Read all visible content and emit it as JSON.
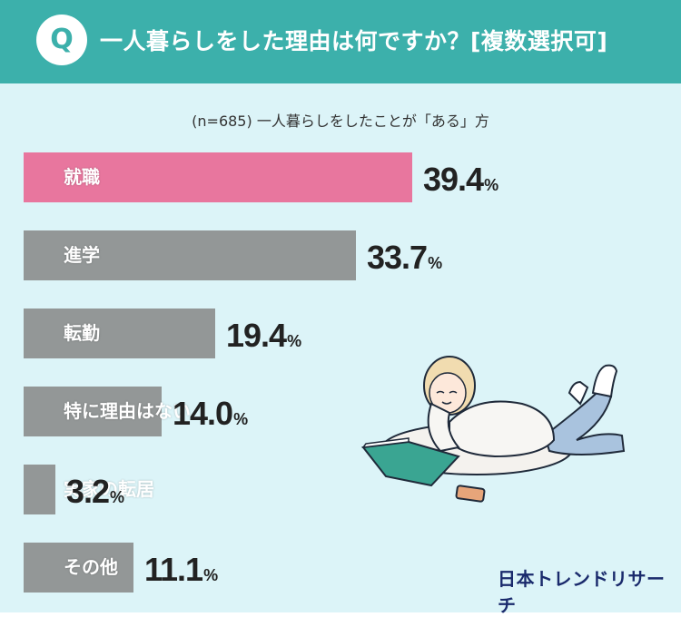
{
  "header": {
    "badge": "Q",
    "title": "一人暮らしをした理由は何ですか？[複数選択可]"
  },
  "sample_note": "(n=685) 一人暮らしをしたことが「ある」方",
  "brand": "日本トレンドリサーチ",
  "colors": {
    "header_bg": "#3cb0ab",
    "page_bg": "#dcf4f8",
    "bar_highlight": "#e8769e",
    "bar_default": "#939797"
  },
  "chart_data": {
    "type": "bar",
    "orientation": "horizontal",
    "categories": [
      "就職",
      "進学",
      "転勤",
      "特に理由はない",
      "実家の転居",
      "その他"
    ],
    "values": [
      39.4,
      33.7,
      19.4,
      14.0,
      3.2,
      11.1
    ],
    "value_labels": [
      "39.4",
      "33.7",
      "19.4",
      "14.0",
      "3.2",
      "11.1"
    ],
    "unit": "%",
    "highlight_index": 0,
    "title": "一人暮らしをした理由は何ですか？[複数選択可]"
  }
}
